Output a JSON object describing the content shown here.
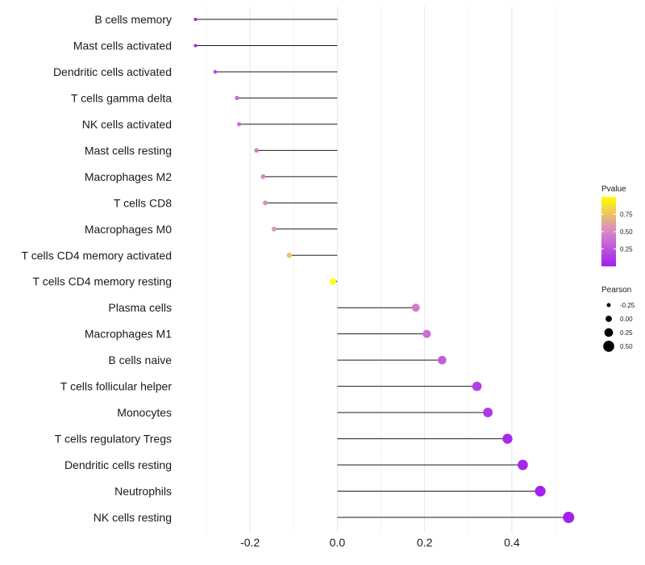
{
  "chart_data": {
    "type": "lollipop",
    "categories": [
      "B cells memory",
      "Mast cells activated",
      "Dendritic cells activated",
      "T cells gamma delta",
      "NK cells activated",
      "Mast cells resting",
      "Macrophages M2",
      "T cells CD8",
      "Macrophages M0",
      "T cells CD4 memory activated",
      "T cells CD4 memory resting",
      "Plasma cells",
      "Macrophages M1",
      "B cells naive",
      "T cells follicular helper",
      "Monocytes",
      "T cells regulatory  Tregs ",
      "Dendritic cells resting",
      "Neutrophils",
      "NK cells resting"
    ],
    "pearson": [
      -0.325,
      -0.325,
      -0.28,
      -0.23,
      -0.225,
      -0.185,
      -0.17,
      -0.165,
      -0.145,
      -0.11,
      -0.01,
      0.18,
      0.205,
      0.24,
      0.32,
      0.345,
      0.39,
      0.425,
      0.465,
      0.53
    ],
    "pvalue": [
      0.02,
      0.02,
      0.2,
      0.35,
      0.38,
      0.45,
      0.5,
      0.52,
      0.6,
      0.75,
      1.0,
      0.45,
      0.38,
      0.3,
      0.15,
      0.12,
      0.05,
      0.04,
      0.01,
      0.005
    ],
    "xlim": [
      -0.325,
      0.53
    ],
    "xticks": [
      -0.2,
      0.0,
      0.2,
      0.4
    ],
    "xtick_labels": [
      "-0.2",
      "0.0",
      "0.2",
      "0.4"
    ],
    "grid": true,
    "legend_color": {
      "title": "Pvalue",
      "ticks": [
        0.25,
        0.5,
        0.75
      ],
      "tick_labels": [
        "0.25",
        "0.50",
        "0.75"
      ],
      "low_color": "#a020f0",
      "mid_color": "#d787c8",
      "high_color": "#ffff00",
      "placement": "right"
    },
    "legend_size": {
      "title": "Pearson",
      "values": [
        -0.25,
        0.0,
        0.25,
        0.5
      ],
      "labels": [
        "-0.25",
        "0.00",
        "0.25",
        "0.50"
      ],
      "placement": "right"
    }
  }
}
